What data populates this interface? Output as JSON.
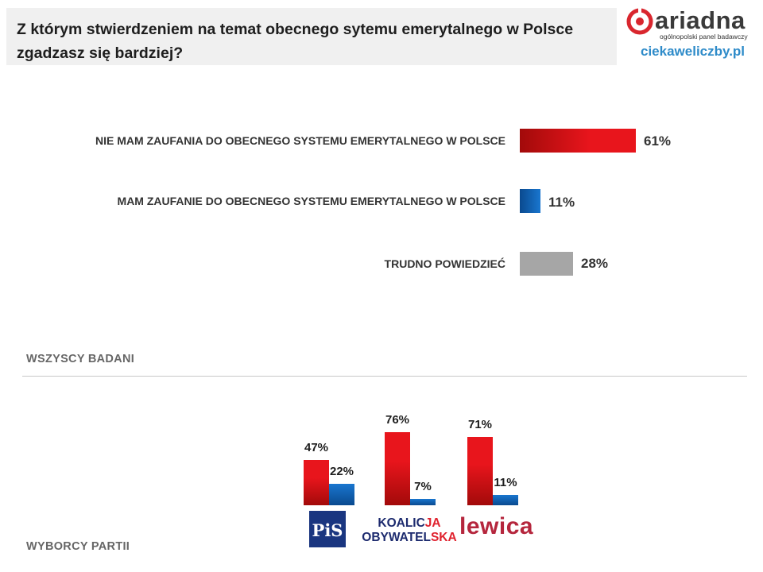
{
  "header": {
    "title": "Z którym stwierdzeniem na temat obecnego sytemu emerytalnego w Polsce zgadzasz się bardziej?",
    "logo_text": "ariadna",
    "logo_tagline": "ogólnopolski panel badawczy",
    "site": "ciekaweliczby.pl"
  },
  "sections": {
    "all": "WSZYSCY BADANI",
    "parties": "WYBORCY PARTII"
  },
  "parties": {
    "pis": "PiS",
    "ko_line1a": "KOALIC",
    "ko_line1b": "JA",
    "ko_line2a": "OBYWATEL",
    "ko_line2b": "SKA",
    "lewica": "lewica"
  },
  "colors": {
    "red": "#e8151c",
    "red_dark": "#a20a0a",
    "blue": "#1976cf",
    "blue_dark": "#0a4a8f",
    "gray": "#a6a6a6"
  },
  "chart_data": [
    {
      "type": "bar",
      "orientation": "horizontal",
      "categories": [
        "NIE MAM ZAUFANIA DO OBECNEGO SYSTEMU EMERYTALNEGO W POLSCE",
        "MAM ZAUFANIE DO OBECNEGO SYSTEMU EMERYTALNEGO W POLSCE",
        "TRUDNO POWIEDZIEĆ"
      ],
      "values": [
        61,
        11,
        28
      ],
      "value_labels": [
        "61%",
        "11%",
        "28%"
      ],
      "unit": "%"
    },
    {
      "type": "bar",
      "orientation": "vertical",
      "categories": [
        "PiS",
        "KOALICJA OBYWATELSKA",
        "lewica"
      ],
      "series": [
        {
          "values": [
            47,
            76,
            71
          ],
          "value_labels": [
            "47%",
            "76%",
            "71%"
          ],
          "color": "red"
        },
        {
          "values": [
            22,
            7,
            11
          ],
          "value_labels": [
            "22%",
            "7%",
            "11%"
          ],
          "color": "blue"
        }
      ],
      "unit": "%"
    }
  ]
}
